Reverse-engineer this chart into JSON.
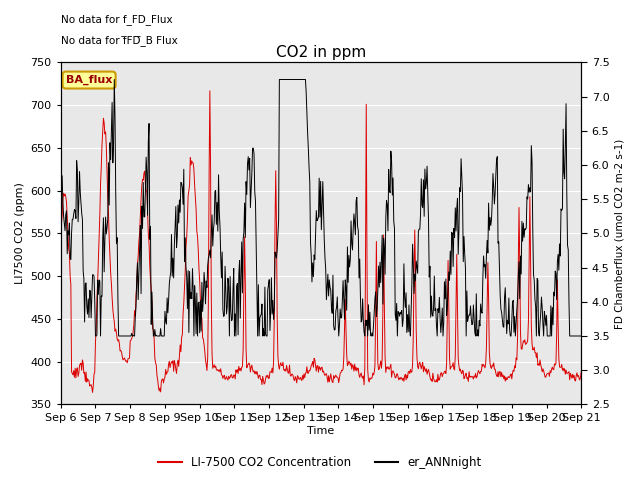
{
  "title": "CO2 in ppm",
  "xlabel": "Time",
  "ylabel_left": "LI7500 CO2 (ppm)",
  "ylabel_right": "FD Chamberflux (umol CO2 m-2 s-1)",
  "ylim_left": [
    350,
    750
  ],
  "ylim_right": [
    2.5,
    7.5
  ],
  "xtick_labels": [
    "Sep 6",
    "Sep 7",
    "Sep 8",
    "Sep 9",
    "Sep 10",
    "Sep 11",
    "Sep 12",
    "Sep 13",
    "Sep 14",
    "Sep 15",
    "Sep 16",
    "Sep 17",
    "Sep 18",
    "Sep 19",
    "Sep 20",
    "Sep 21"
  ],
  "xtick_positions": [
    0,
    1,
    2,
    3,
    4,
    5,
    6,
    7,
    8,
    9,
    10,
    11,
    12,
    13,
    14,
    15
  ],
  "annotation1": "No data for f_FD_Flux",
  "annotation2": "No data for f̅FD̅_B Flux",
  "ba_flux_label": "BA_flux",
  "legend_red": "LI-7500 CO2 Concentration",
  "legend_black": "er_ANNnight",
  "red_color": "#dd0000",
  "black_color": "#000000",
  "bg_color": "#e8e8e8",
  "fig_bg_color": "#ffffff",
  "title_fontsize": 11,
  "yticks_left": [
    350,
    400,
    450,
    500,
    550,
    600,
    650,
    700,
    750
  ],
  "yticks_right": [
    2.5,
    3.0,
    3.5,
    4.0,
    4.5,
    5.0,
    5.5,
    6.0,
    6.5,
    7.0,
    7.5
  ]
}
